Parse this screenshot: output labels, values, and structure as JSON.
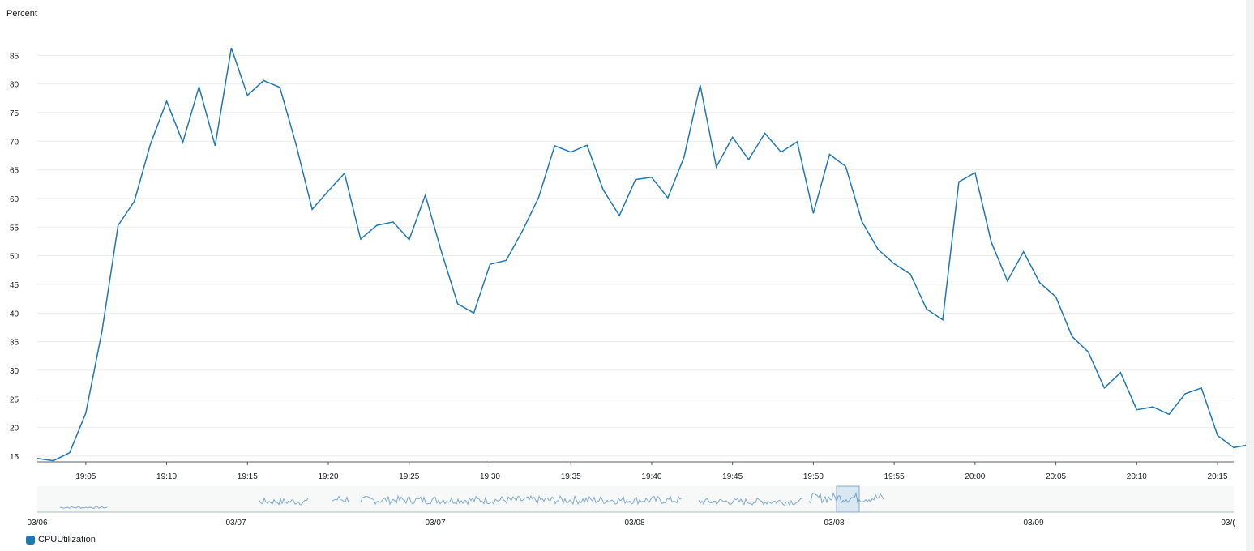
{
  "chart_data": {
    "type": "line",
    "ylabel": "Percent",
    "ylim": [
      14,
      89
    ],
    "yticks": [
      15,
      20,
      25,
      30,
      35,
      40,
      45,
      50,
      55,
      60,
      65,
      70,
      75,
      80,
      85
    ],
    "xlim": [
      "19:02",
      "20:16"
    ],
    "xtick_labels": [
      "19:05",
      "19:10",
      "19:15",
      "19:20",
      "19:25",
      "19:30",
      "19:35",
      "19:40",
      "19:45",
      "19:50",
      "19:55",
      "20:00",
      "20:05",
      "20:10",
      "20:15"
    ],
    "grid": true,
    "legend": "bottom-left",
    "series": [
      {
        "name": "CPUUtilization",
        "color": "#1f77b4",
        "x_start": "19:02",
        "x_step_minutes": 1,
        "values": [
          14.6,
          14.2,
          15.6,
          22.5,
          36.8,
          55.3,
          59.5,
          69.5,
          77.0,
          69.8,
          79.5,
          69.2,
          86.3,
          78.0,
          80.6,
          79.4,
          69.5,
          58.1,
          61.3,
          64.4,
          52.9,
          55.3,
          55.9,
          52.8,
          60.6,
          50.7,
          41.6,
          40.0,
          48.5,
          49.2,
          54.3,
          60.1,
          69.2,
          68.1,
          69.3,
          61.5,
          57.0,
          63.3,
          63.7,
          60.1,
          67.2,
          79.8,
          65.5,
          70.7,
          66.8,
          71.4,
          68.1,
          69.9,
          57.4,
          67.7,
          65.6,
          56.0,
          51.1,
          48.6,
          46.8,
          40.7,
          38.8,
          62.9,
          64.5,
          52.4,
          45.6,
          50.7,
          45.3,
          42.8,
          35.9,
          33.2,
          26.9,
          29.6,
          23.1,
          23.6,
          22.3,
          25.9,
          26.9,
          18.6,
          16.5,
          17.0
        ]
      }
    ]
  },
  "navigator": {
    "date_labels": [
      "03/06",
      "03/07",
      "03/07",
      "03/08",
      "03/08",
      "03/09",
      "03/("
    ],
    "overview_values": [
      0,
      0,
      0,
      0,
      0,
      0,
      0,
      0,
      0,
      0,
      0,
      0,
      0,
      0,
      0,
      0,
      0,
      0,
      0,
      0,
      0,
      0,
      0,
      0,
      0,
      0,
      0,
      0,
      0,
      0,
      0,
      0,
      0,
      0,
      0,
      0,
      0,
      0,
      0,
      0,
      0,
      0,
      0,
      0,
      0,
      0,
      0,
      0,
      0,
      0,
      0,
      0,
      0,
      0,
      0,
      0,
      0,
      0,
      0,
      0,
      0,
      0,
      0,
      0,
      0,
      0,
      0,
      0,
      0,
      0,
      0,
      0,
      0,
      0,
      0,
      0,
      0,
      0,
      0,
      0,
      0,
      0,
      0,
      0,
      0,
      0,
      0,
      0,
      0,
      0,
      0,
      0,
      0,
      0,
      0,
      0,
      0,
      0,
      0,
      0,
      0,
      0,
      0,
      0,
      0,
      0,
      0,
      0,
      0,
      0,
      0,
      0,
      0,
      0,
      0,
      0,
      0,
      0,
      0,
      0,
      0,
      0,
      0,
      0,
      0,
      0
    ]
  },
  "legend": {
    "label": "CPUUtilization",
    "color": "#1f77b4"
  }
}
